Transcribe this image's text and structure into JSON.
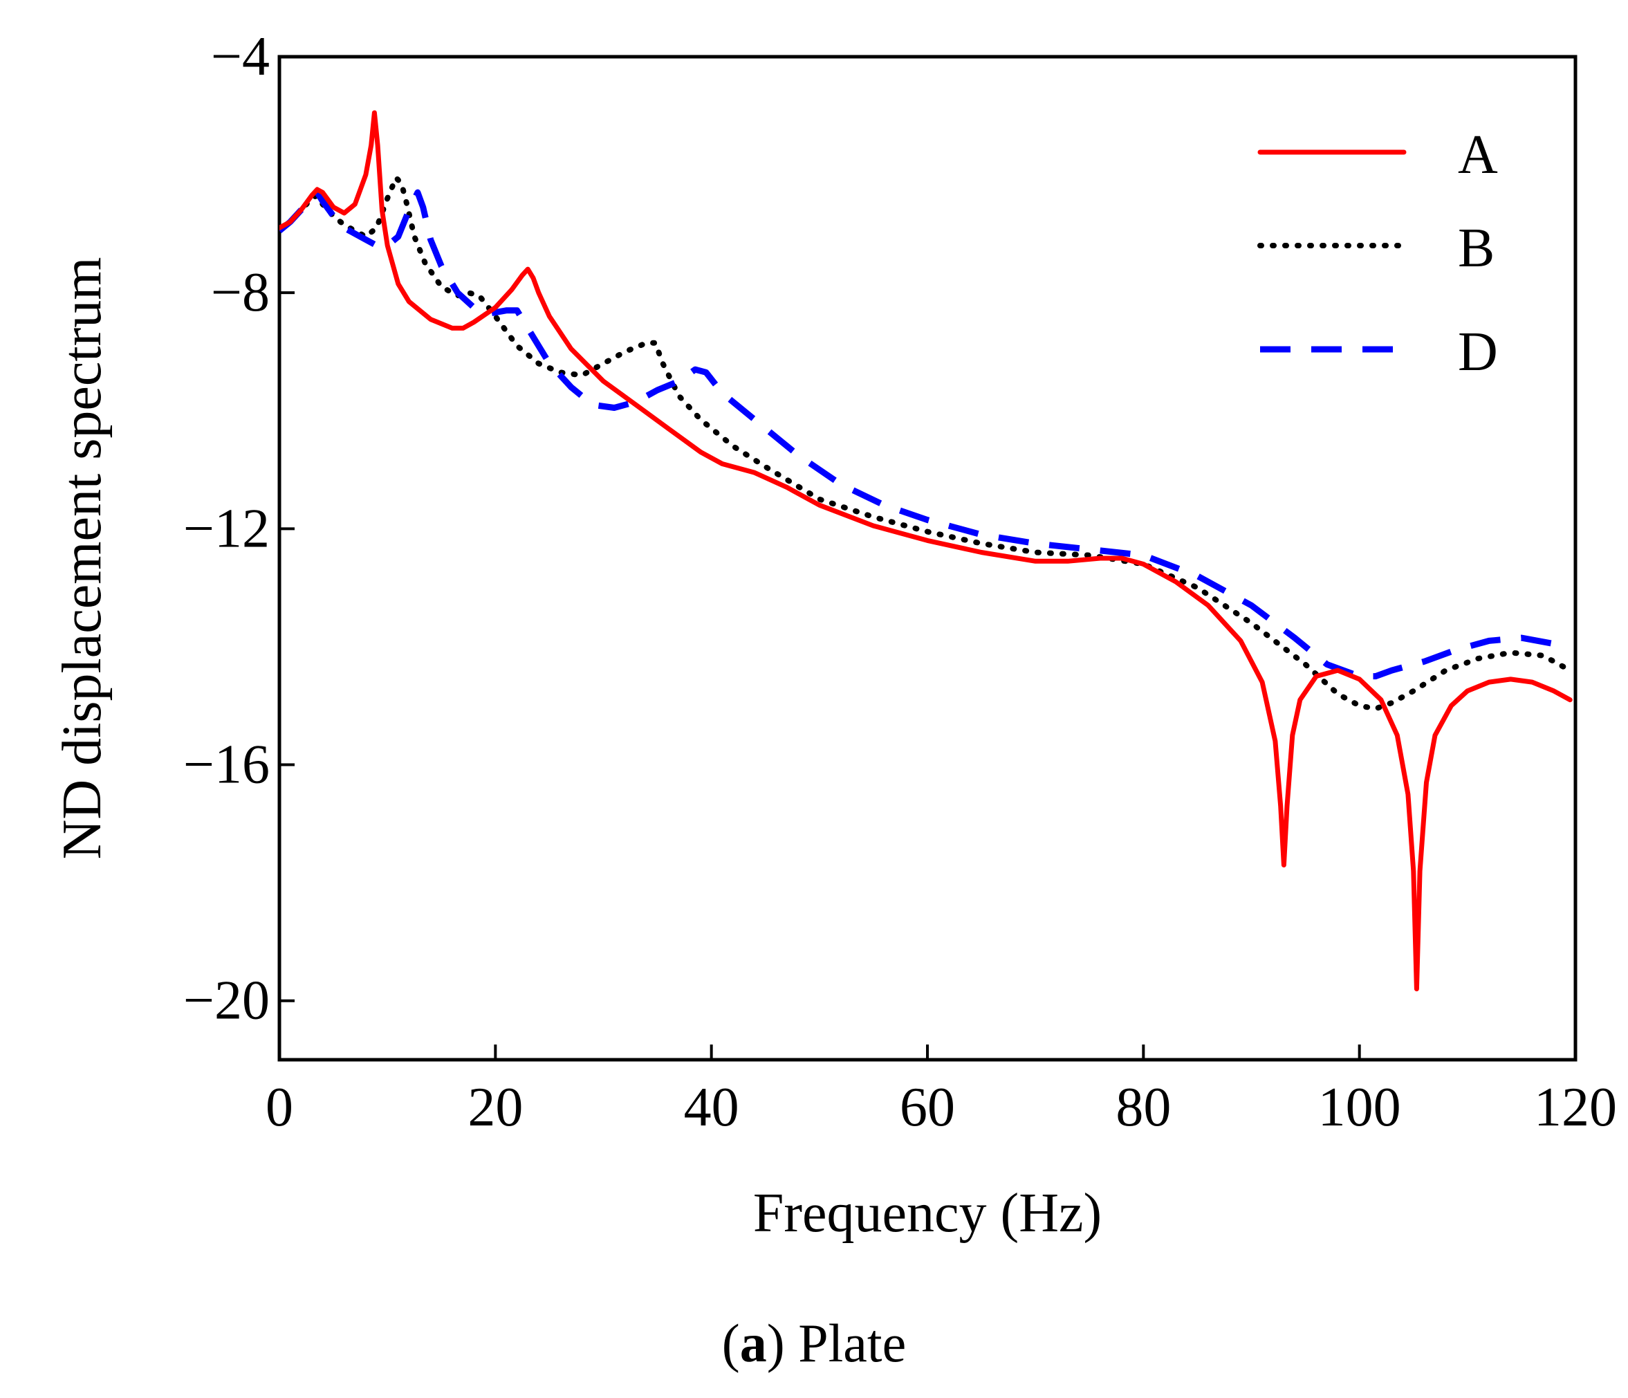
{
  "chart_data": {
    "type": "line",
    "title": "",
    "xlabel": "Frequency (Hz)",
    "ylabel": "ND displacement spectrum",
    "xlim": [
      0,
      120
    ],
    "ylim": [
      -21,
      -4
    ],
    "xticks": [
      0,
      20,
      40,
      60,
      80,
      100,
      120
    ],
    "xtick_labels": [
      "0",
      "20",
      "40",
      "60",
      "80",
      "100",
      "120"
    ],
    "yticks": [
      -4,
      -8,
      -12,
      -16,
      -20
    ],
    "ytick_labels": [
      "−4",
      "−8",
      "−12",
      "−16",
      "−20"
    ],
    "grid": false,
    "legend_position": "top-right",
    "series": [
      {
        "name": "A",
        "color": "#ff0000",
        "style": "solid",
        "points": [
          [
            0,
            -6.9
          ],
          [
            1,
            -6.8
          ],
          [
            2,
            -6.6
          ],
          [
            3,
            -6.35
          ],
          [
            3.5,
            -6.25
          ],
          [
            4,
            -6.3
          ],
          [
            5,
            -6.55
          ],
          [
            6,
            -6.65
          ],
          [
            7,
            -6.5
          ],
          [
            8,
            -6.0
          ],
          [
            8.5,
            -5.5
          ],
          [
            8.8,
            -4.95
          ],
          [
            9.1,
            -5.5
          ],
          [
            9.5,
            -6.6
          ],
          [
            10,
            -7.2
          ],
          [
            11,
            -7.85
          ],
          [
            12,
            -8.15
          ],
          [
            14,
            -8.45
          ],
          [
            16,
            -8.6
          ],
          [
            17,
            -8.6
          ],
          [
            18,
            -8.5
          ],
          [
            20,
            -8.25
          ],
          [
            21.5,
            -7.95
          ],
          [
            22.5,
            -7.7
          ],
          [
            23,
            -7.6
          ],
          [
            23.5,
            -7.75
          ],
          [
            24,
            -8.0
          ],
          [
            25,
            -8.4
          ],
          [
            27,
            -8.95
          ],
          [
            30,
            -9.5
          ],
          [
            33,
            -9.9
          ],
          [
            36,
            -10.3
          ],
          [
            39,
            -10.7
          ],
          [
            41,
            -10.9
          ],
          [
            44,
            -11.05
          ],
          [
            47,
            -11.3
          ],
          [
            50,
            -11.6
          ],
          [
            55,
            -11.95
          ],
          [
            60,
            -12.2
          ],
          [
            65,
            -12.4
          ],
          [
            70,
            -12.55
          ],
          [
            73,
            -12.55
          ],
          [
            76,
            -12.5
          ],
          [
            78,
            -12.5
          ],
          [
            80,
            -12.6
          ],
          [
            83,
            -12.9
          ],
          [
            86,
            -13.3
          ],
          [
            89,
            -13.9
          ],
          [
            91,
            -14.6
          ],
          [
            92.2,
            -15.6
          ],
          [
            92.7,
            -16.7
          ],
          [
            93,
            -17.7
          ],
          [
            93.3,
            -16.7
          ],
          [
            93.8,
            -15.5
          ],
          [
            94.5,
            -14.9
          ],
          [
            96,
            -14.5
          ],
          [
            98,
            -14.4
          ],
          [
            100,
            -14.55
          ],
          [
            102,
            -14.9
          ],
          [
            103.5,
            -15.5
          ],
          [
            104.5,
            -16.5
          ],
          [
            105,
            -17.8
          ],
          [
            105.3,
            -19.8
          ],
          [
            105.6,
            -17.8
          ],
          [
            106.2,
            -16.3
          ],
          [
            107,
            -15.5
          ],
          [
            108.5,
            -15.0
          ],
          [
            110,
            -14.75
          ],
          [
            112,
            -14.6
          ],
          [
            114,
            -14.55
          ],
          [
            116,
            -14.6
          ],
          [
            118,
            -14.75
          ],
          [
            119.5,
            -14.9
          ]
        ]
      },
      {
        "name": "B",
        "color": "#000000",
        "style": "dotted",
        "points": [
          [
            0,
            -6.95
          ],
          [
            1,
            -6.8
          ],
          [
            2,
            -6.6
          ],
          [
            3,
            -6.4
          ],
          [
            3.5,
            -6.35
          ],
          [
            4,
            -6.5
          ],
          [
            5,
            -6.7
          ],
          [
            6,
            -6.85
          ],
          [
            8,
            -7.05
          ],
          [
            9,
            -6.9
          ],
          [
            10,
            -6.4
          ],
          [
            10.8,
            -6.05
          ],
          [
            11.3,
            -6.15
          ],
          [
            11.8,
            -6.5
          ],
          [
            12.5,
            -7.05
          ],
          [
            13.5,
            -7.5
          ],
          [
            15,
            -7.9
          ],
          [
            16.5,
            -8.05
          ],
          [
            17.5,
            -8.0
          ],
          [
            18.5,
            -8.05
          ],
          [
            20,
            -8.4
          ],
          [
            22,
            -8.9
          ],
          [
            24,
            -9.2
          ],
          [
            26,
            -9.35
          ],
          [
            28,
            -9.4
          ],
          [
            30,
            -9.2
          ],
          [
            32,
            -9.0
          ],
          [
            34,
            -8.85
          ],
          [
            34.8,
            -8.85
          ],
          [
            35.5,
            -9.2
          ],
          [
            37,
            -9.75
          ],
          [
            39,
            -10.15
          ],
          [
            42,
            -10.6
          ],
          [
            45,
            -10.95
          ],
          [
            50,
            -11.5
          ],
          [
            55,
            -11.8
          ],
          [
            60,
            -12.05
          ],
          [
            65,
            -12.25
          ],
          [
            70,
            -12.4
          ],
          [
            75,
            -12.45
          ],
          [
            80,
            -12.6
          ],
          [
            85,
            -13.0
          ],
          [
            90,
            -13.6
          ],
          [
            95,
            -14.3
          ],
          [
            98,
            -14.8
          ],
          [
            100,
            -15.0
          ],
          [
            101.5,
            -15.05
          ],
          [
            103,
            -14.95
          ],
          [
            105,
            -14.75
          ],
          [
            108,
            -14.4
          ],
          [
            111,
            -14.2
          ],
          [
            114,
            -14.1
          ],
          [
            117,
            -14.15
          ],
          [
            119.5,
            -14.4
          ]
        ]
      },
      {
        "name": "D",
        "color": "#0000ff",
        "style": "dashed",
        "points": [
          [
            0,
            -6.95
          ],
          [
            1,
            -6.8
          ],
          [
            2,
            -6.6
          ],
          [
            3,
            -6.4
          ],
          [
            3.5,
            -6.3
          ],
          [
            4,
            -6.45
          ],
          [
            5,
            -6.7
          ],
          [
            6,
            -6.9
          ],
          [
            8,
            -7.1
          ],
          [
            9,
            -7.2
          ],
          [
            10,
            -7.2
          ],
          [
            11,
            -7.05
          ],
          [
            12,
            -6.6
          ],
          [
            12.8,
            -6.3
          ],
          [
            13.3,
            -6.55
          ],
          [
            14,
            -7.1
          ],
          [
            15,
            -7.55
          ],
          [
            16.5,
            -8.0
          ],
          [
            18,
            -8.25
          ],
          [
            19.5,
            -8.35
          ],
          [
            21,
            -8.3
          ],
          [
            22,
            -8.3
          ],
          [
            23,
            -8.6
          ],
          [
            25,
            -9.2
          ],
          [
            27,
            -9.6
          ],
          [
            29,
            -9.9
          ],
          [
            31,
            -9.95
          ],
          [
            33,
            -9.85
          ],
          [
            35,
            -9.65
          ],
          [
            37,
            -9.5
          ],
          [
            38.5,
            -9.3
          ],
          [
            39.5,
            -9.35
          ],
          [
            41,
            -9.7
          ],
          [
            44,
            -10.15
          ],
          [
            48,
            -10.75
          ],
          [
            52,
            -11.25
          ],
          [
            56,
            -11.6
          ],
          [
            60,
            -11.85
          ],
          [
            65,
            -12.1
          ],
          [
            70,
            -12.25
          ],
          [
            75,
            -12.35
          ],
          [
            80,
            -12.45
          ],
          [
            85,
            -12.8
          ],
          [
            90,
            -13.3
          ],
          [
            94,
            -13.85
          ],
          [
            97,
            -14.3
          ],
          [
            100,
            -14.5
          ],
          [
            101.5,
            -14.5
          ],
          [
            103,
            -14.4
          ],
          [
            106,
            -14.25
          ],
          [
            109,
            -14.05
          ],
          [
            112,
            -13.9
          ],
          [
            115,
            -13.85
          ],
          [
            118,
            -13.95
          ],
          [
            119.5,
            -14.05
          ]
        ]
      }
    ]
  },
  "caption": {
    "label_bold": "a",
    "open_paren": "(",
    "close_paren": ")",
    "text": " Plate"
  }
}
